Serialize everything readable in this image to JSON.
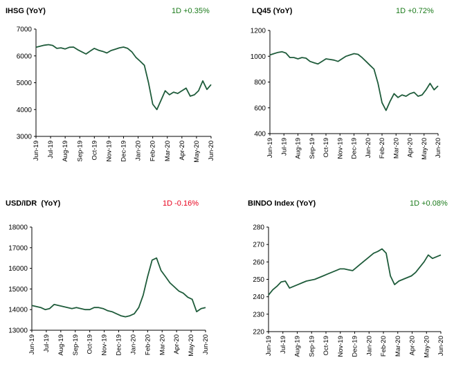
{
  "line_color": "#1e5b3a",
  "up_color": "#1a7a1a",
  "down_color": "#e8001c",
  "chart_data": [
    {
      "type": "line",
      "title": "IHSG (YoY)",
      "change": "1D +0.35%",
      "change_dir": "up",
      "ylim": [
        3000,
        7000
      ],
      "yticks": [
        "3000",
        "4000",
        "5000",
        "6000",
        "7000"
      ],
      "xticks": [
        "Jun-19",
        "Jul-19",
        "Aug-19",
        "Sep-19",
        "Oct-19",
        "Nov-19",
        "Dec-19",
        "Jan-20",
        "Feb-20",
        "Mar-20",
        "Apr-20",
        "May-20",
        "Jun-20"
      ],
      "values": [
        6320,
        6360,
        6400,
        6420,
        6390,
        6280,
        6300,
        6260,
        6320,
        6330,
        6230,
        6150,
        6070,
        6180,
        6280,
        6210,
        6170,
        6110,
        6200,
        6250,
        6300,
        6330,
        6280,
        6150,
        5940,
        5800,
        5650,
        5000,
        4200,
        4000,
        4350,
        4700,
        4550,
        4650,
        4600,
        4700,
        4800,
        4500,
        4550,
        4700,
        5070,
        4750,
        4930
      ]
    },
    {
      "type": "line",
      "title": "LQ45 (YoY)",
      "change": "1D +0.72%",
      "change_dir": "up",
      "ylim": [
        400,
        1200
      ],
      "yticks": [
        "400",
        "600",
        "800",
        "1000",
        "1200"
      ],
      "xticks": [
        "Jun-19",
        "Jul-19",
        "Aug-19",
        "Sep-19",
        "Oct-19",
        "Nov-19",
        "Dec-19",
        "Jan-20",
        "Feb-20",
        "Mar-20",
        "Apr-20",
        "May-20",
        "Jun-20"
      ],
      "values": [
        1010,
        1020,
        1030,
        1035,
        1025,
        990,
        990,
        980,
        990,
        985,
        960,
        950,
        940,
        960,
        980,
        975,
        970,
        960,
        980,
        1000,
        1010,
        1020,
        1015,
        990,
        960,
        930,
        900,
        790,
        640,
        580,
        650,
        710,
        680,
        700,
        690,
        710,
        720,
        690,
        700,
        740,
        790,
        740,
        770
      ]
    },
    {
      "type": "line",
      "title": "USD/IDR  (YoY)",
      "change": "1D -0.16%",
      "change_dir": "down",
      "ylim": [
        13000,
        18000
      ],
      "yticks": [
        "13000",
        "14000",
        "15000",
        "16000",
        "17000",
        "18000"
      ],
      "xticks": [
        "Jun-19",
        "Jul-19",
        "Aug-19",
        "Sep-19",
        "Oct-19",
        "Nov-19",
        "Dec-19",
        "Jan-20",
        "Feb-20",
        "Mar-20",
        "Apr-20",
        "May-20",
        "Jun-20"
      ],
      "values": [
        14200,
        14150,
        14100,
        14000,
        14050,
        14250,
        14200,
        14150,
        14100,
        14050,
        14100,
        14050,
        14000,
        14000,
        14100,
        14100,
        14050,
        13950,
        13900,
        13800,
        13700,
        13650,
        13700,
        13800,
        14100,
        14700,
        15600,
        16400,
        16500,
        15900,
        15600,
        15300,
        15100,
        14900,
        14800,
        14600,
        14500,
        13900,
        14050,
        14100
      ]
    },
    {
      "type": "line",
      "title": "BINDO Index (YoY)",
      "change": "1D +0.08%",
      "change_dir": "up",
      "ylim": [
        220,
        280
      ],
      "yticks": [
        "220",
        "230",
        "240",
        "250",
        "260",
        "270",
        "280"
      ],
      "xticks": [
        "Jun-19",
        "Jul-19",
        "Aug-19",
        "Sep-19",
        "Oct-19",
        "Nov-19",
        "Dec-19",
        "Jan-20",
        "Feb-20",
        "Mar-20",
        "Apr-20",
        "May-20",
        "Jun-20"
      ],
      "values": [
        241,
        244,
        246,
        248.5,
        249,
        245,
        246,
        247,
        248,
        249,
        249.5,
        250,
        251,
        252,
        253,
        254,
        255,
        256,
        256,
        255.5,
        255,
        257,
        259,
        261,
        263,
        265,
        266,
        267.5,
        265,
        252,
        247,
        249,
        250,
        251,
        252,
        254,
        257,
        260,
        264,
        262,
        263,
        264
      ]
    }
  ]
}
